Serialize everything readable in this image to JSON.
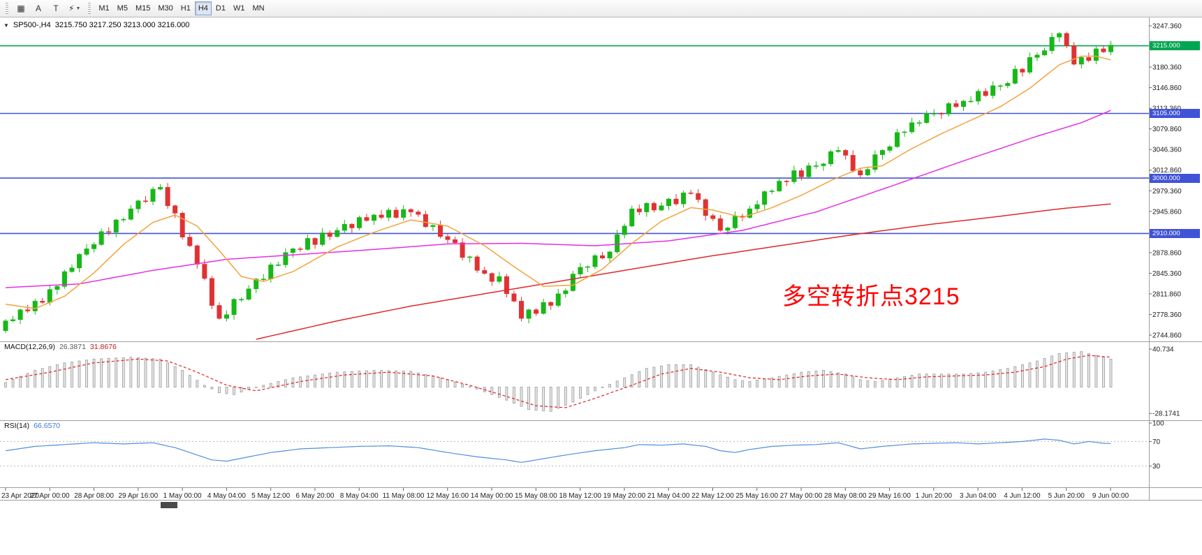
{
  "toolbar": {
    "icons": [
      {
        "id": "chart-window-icon",
        "glyph": "▦",
        "caret": false
      },
      {
        "id": "text-label-icon",
        "glyph": "A",
        "caret": false
      },
      {
        "id": "text-tool-icon",
        "glyph": "T",
        "caret": false
      },
      {
        "id": "quick-draw-icon",
        "glyph": "⚡",
        "caret": true
      }
    ],
    "timeframes": [
      "M1",
      "M5",
      "M15",
      "M30",
      "H1",
      "H4",
      "D1",
      "W1",
      "MN"
    ],
    "active_timeframe": "H4"
  },
  "chart": {
    "caret": "▼",
    "title_symbol": "SP500-,H4",
    "title_ohlc": "3215.750 3217.250 3213.000 3216.000",
    "annotation": {
      "text": "多空转折点3215",
      "color": "#ff0000"
    },
    "price_axis_labels": [
      3247.36,
      3180.36,
      3146.86,
      3113.36,
      3079.86,
      3046.36,
      3012.86,
      2979.36,
      2945.86,
      2878.86,
      2845.36,
      2811.86,
      2778.36,
      2744.86
    ],
    "hlines": [
      {
        "price": 3215.0,
        "label": "3215.000",
        "color": "#00a651"
      },
      {
        "price": 3105.0,
        "label": "3105.000",
        "color": "#4053d6"
      },
      {
        "price": 3000.0,
        "label": "3000.000",
        "color": "#4053d6"
      },
      {
        "price": 2910.0,
        "label": "2910.000",
        "color": "#4053d6"
      }
    ],
    "colors": {
      "up": "#18b718",
      "down": "#e03232",
      "ma_fast": "#f2a33c",
      "ma_mid": "#e62ee6",
      "ma_slow": "#e02828",
      "macd_hist_fill": "#e6e6e6",
      "macd_hist_stroke": "#9a9a9a",
      "macd_signal": "#e02020",
      "rsi_line": "#4f8fde",
      "axis_text": "#1a1a1a",
      "frame": "#9e9e9e"
    }
  },
  "chart_data": {
    "type": "candlestick",
    "symbol": "SP500-",
    "period": "H4",
    "current_bar": {
      "open": 3215.75,
      "high": 3217.25,
      "low": 3213.0,
      "close": 3216.0
    },
    "price_min": 2744.86,
    "price_max": 3247.36,
    "open_first": 2752,
    "closes": [
      2768,
      2770,
      2786,
      2784,
      2800,
      2798,
      2819,
      2824,
      2848,
      2854,
      2876,
      2885,
      2892,
      2913,
      2912,
      2932,
      2933,
      2950,
      2963,
      2962,
      2982,
      2985,
      2955,
      2943,
      2904,
      2890,
      2860,
      2837,
      2793,
      2772,
      2778,
      2803,
      2803,
      2820,
      2836,
      2836,
      2859,
      2859,
      2879,
      2885,
      2884,
      2902,
      2892,
      2911,
      2905,
      2915,
      2925,
      2919,
      2936,
      2931,
      2940,
      2936,
      2948,
      2936,
      2949,
      2945,
      2941,
      2921,
      2923,
      2905,
      2900,
      2895,
      2871,
      2872,
      2850,
      2845,
      2832,
      2840,
      2812,
      2800,
      2772,
      2786,
      2780,
      2798,
      2793,
      2812,
      2817,
      2844,
      2855,
      2856,
      2874,
      2870,
      2880,
      2908,
      2922,
      2950,
      2945,
      2959,
      2948,
      2955,
      2966,
      2958,
      2976,
      2975,
      2965,
      2939,
      2934,
      2915,
      2919,
      2938,
      2936,
      2950,
      2957,
      2978,
      2979,
      2995,
      2994,
      3012,
      3002,
      3020,
      3020,
      3023,
      3043,
      3045,
      3037,
      3012,
      3005,
      3014,
      3038,
      3045,
      3051,
      3074,
      3075,
      3090,
      3090,
      3105,
      3105,
      3104,
      3121,
      3116,
      3125,
      3125,
      3141,
      3134,
      3150,
      3150,
      3154,
      3177,
      3172,
      3196,
      3200,
      3207,
      3229,
      3235,
      3215,
      3185,
      3196,
      3191,
      3210,
      3205,
      3216
    ],
    "wick_high": [
      3,
      6,
      2,
      8,
      4,
      5,
      7,
      2
    ],
    "wick_low": [
      4,
      2,
      7,
      3,
      6,
      2,
      5,
      8
    ],
    "ma": {
      "fast": {
        "anchors": [
          [
            0,
            2795
          ],
          [
            4,
            2788
          ],
          [
            8,
            2808
          ],
          [
            12,
            2846
          ],
          [
            16,
            2892
          ],
          [
            20,
            2928
          ],
          [
            23,
            2940
          ],
          [
            26,
            2922
          ],
          [
            29,
            2882
          ],
          [
            32,
            2840
          ],
          [
            35,
            2832
          ],
          [
            39,
            2848
          ],
          [
            45,
            2888
          ],
          [
            50,
            2912
          ],
          [
            55,
            2932
          ],
          [
            60,
            2922
          ],
          [
            65,
            2890
          ],
          [
            69,
            2856
          ],
          [
            73,
            2824
          ],
          [
            77,
            2826
          ],
          [
            81,
            2852
          ],
          [
            85,
            2894
          ],
          [
            89,
            2930
          ],
          [
            93,
            2952
          ],
          [
            96,
            2948
          ],
          [
            100,
            2936
          ],
          [
            104,
            2952
          ],
          [
            108,
            2972
          ],
          [
            112,
            2996
          ],
          [
            116,
            3016
          ],
          [
            119,
            3020
          ],
          [
            123,
            3048
          ],
          [
            127,
            3072
          ],
          [
            131,
            3094
          ],
          [
            135,
            3116
          ],
          [
            139,
            3146
          ],
          [
            143,
            3184
          ],
          [
            146,
            3198
          ],
          [
            148,
            3198
          ],
          [
            150,
            3192
          ]
        ]
      },
      "mid": {
        "anchors": [
          [
            0,
            2822
          ],
          [
            10,
            2828
          ],
          [
            20,
            2850
          ],
          [
            30,
            2868
          ],
          [
            40,
            2876
          ],
          [
            50,
            2884
          ],
          [
            60,
            2893
          ],
          [
            70,
            2894
          ],
          [
            80,
            2890
          ],
          [
            90,
            2898
          ],
          [
            100,
            2915
          ],
          [
            110,
            2945
          ],
          [
            120,
            2986
          ],
          [
            130,
            3028
          ],
          [
            140,
            3068
          ],
          [
            146,
            3090
          ],
          [
            150,
            3110
          ]
        ]
      },
      "slow": {
        "anchors": [
          [
            34,
            2738
          ],
          [
            45,
            2768
          ],
          [
            55,
            2792
          ],
          [
            65,
            2812
          ],
          [
            75,
            2832
          ],
          [
            85,
            2852
          ],
          [
            95,
            2872
          ],
          [
            105,
            2890
          ],
          [
            115,
            2908
          ],
          [
            125,
            2924
          ],
          [
            135,
            2938
          ],
          [
            143,
            2950
          ],
          [
            150,
            2958
          ]
        ]
      }
    },
    "macd": {
      "label": "MACD(12,26,9)",
      "value_main": "26.3871",
      "value_signal": "31.8676",
      "axis": [
        {
          "v": 40.734,
          "label": "40.734"
        },
        {
          "v": -28.1741,
          "label": "-28.1741"
        }
      ],
      "range": [
        -34,
        46
      ],
      "hist_anchors": [
        [
          0,
          5
        ],
        [
          4,
          18
        ],
        [
          8,
          26
        ],
        [
          12,
          30
        ],
        [
          17,
          32
        ],
        [
          21,
          30
        ],
        [
          24,
          18
        ],
        [
          27,
          2
        ],
        [
          29,
          -6
        ],
        [
          31,
          -8
        ],
        [
          34,
          0
        ],
        [
          39,
          10
        ],
        [
          45,
          16
        ],
        [
          50,
          18
        ],
        [
          55,
          17
        ],
        [
          60,
          8
        ],
        [
          64,
          -2
        ],
        [
          68,
          -14
        ],
        [
          71,
          -24
        ],
        [
          74,
          -26
        ],
        [
          77,
          -16
        ],
        [
          80,
          -4
        ],
        [
          84,
          10
        ],
        [
          87,
          20
        ],
        [
          90,
          24
        ],
        [
          93,
          24
        ],
        [
          96,
          16
        ],
        [
          99,
          8
        ],
        [
          101,
          6
        ],
        [
          104,
          10
        ],
        [
          108,
          16
        ],
        [
          111,
          18
        ],
        [
          114,
          14
        ],
        [
          116,
          8
        ],
        [
          118,
          6
        ],
        [
          121,
          10
        ],
        [
          124,
          14
        ],
        [
          127,
          14
        ],
        [
          130,
          14
        ],
        [
          133,
          16
        ],
        [
          136,
          20
        ],
        [
          140,
          28
        ],
        [
          143,
          36
        ],
        [
          146,
          38
        ],
        [
          148,
          34
        ],
        [
          150,
          30
        ]
      ],
      "signal_anchors": [
        [
          0,
          8
        ],
        [
          6,
          16
        ],
        [
          12,
          26
        ],
        [
          18,
          30
        ],
        [
          22,
          28
        ],
        [
          26,
          16
        ],
        [
          30,
          2
        ],
        [
          34,
          -4
        ],
        [
          40,
          6
        ],
        [
          46,
          13
        ],
        [
          52,
          16
        ],
        [
          58,
          12
        ],
        [
          63,
          2
        ],
        [
          68,
          -10
        ],
        [
          72,
          -20
        ],
        [
          76,
          -22
        ],
        [
          80,
          -12
        ],
        [
          85,
          2
        ],
        [
          89,
          14
        ],
        [
          93,
          20
        ],
        [
          97,
          16
        ],
        [
          101,
          10
        ],
        [
          105,
          8
        ],
        [
          109,
          12
        ],
        [
          113,
          14
        ],
        [
          117,
          10
        ],
        [
          121,
          8
        ],
        [
          125,
          11
        ],
        [
          129,
          12
        ],
        [
          133,
          13
        ],
        [
          137,
          16
        ],
        [
          141,
          22
        ],
        [
          144,
          30
        ],
        [
          147,
          34
        ],
        [
          150,
          32
        ]
      ]
    },
    "rsi": {
      "label": "RSI(14)",
      "value": "66.6570",
      "levels": [
        70,
        30
      ],
      "axis_labels": [
        100,
        70,
        30
      ],
      "range": [
        0,
        100
      ],
      "anchors": [
        [
          0,
          55
        ],
        [
          4,
          62
        ],
        [
          8,
          65
        ],
        [
          12,
          68
        ],
        [
          16,
          66
        ],
        [
          20,
          68
        ],
        [
          23,
          60
        ],
        [
          26,
          48
        ],
        [
          28,
          40
        ],
        [
          30,
          38
        ],
        [
          33,
          45
        ],
        [
          36,
          52
        ],
        [
          40,
          58
        ],
        [
          44,
          60
        ],
        [
          48,
          62
        ],
        [
          52,
          63
        ],
        [
          56,
          60
        ],
        [
          60,
          52
        ],
        [
          64,
          45
        ],
        [
          68,
          40
        ],
        [
          70,
          36
        ],
        [
          73,
          42
        ],
        [
          76,
          48
        ],
        [
          80,
          55
        ],
        [
          84,
          60
        ],
        [
          86,
          65
        ],
        [
          89,
          64
        ],
        [
          92,
          66
        ],
        [
          95,
          62
        ],
        [
          97,
          55
        ],
        [
          99,
          52
        ],
        [
          101,
          57
        ],
        [
          104,
          62
        ],
        [
          107,
          64
        ],
        [
          110,
          65
        ],
        [
          113,
          68
        ],
        [
          116,
          58
        ],
        [
          119,
          62
        ],
        [
          123,
          66
        ],
        [
          126,
          67
        ],
        [
          129,
          68
        ],
        [
          132,
          66
        ],
        [
          135,
          68
        ],
        [
          138,
          70
        ],
        [
          141,
          74
        ],
        [
          143,
          72
        ],
        [
          145,
          66
        ],
        [
          147,
          70
        ],
        [
          149,
          67
        ],
        [
          150,
          66.7
        ]
      ]
    },
    "time_axis": [
      "23 Apr 2020",
      "27 Apr 00:00",
      "28 Apr 08:00",
      "29 Apr 16:00",
      "1 May 00:00",
      "4 May 04:00",
      "5 May 12:00",
      "6 May 20:00",
      "8 May 04:00",
      "11 May 08:00",
      "12 May 16:00",
      "14 May 00:00",
      "15 May 08:00",
      "18 May 12:00",
      "19 May 20:00",
      "21 May 04:00",
      "22 May 12:00",
      "25 May 16:00",
      "27 May 00:00",
      "28 May 08:00",
      "29 May 16:00",
      "1 Jun 20:00",
      "3 Jun 04:00",
      "4 Jun 12:00",
      "5 Jun 20:00",
      "9 Jun 00:00"
    ]
  }
}
